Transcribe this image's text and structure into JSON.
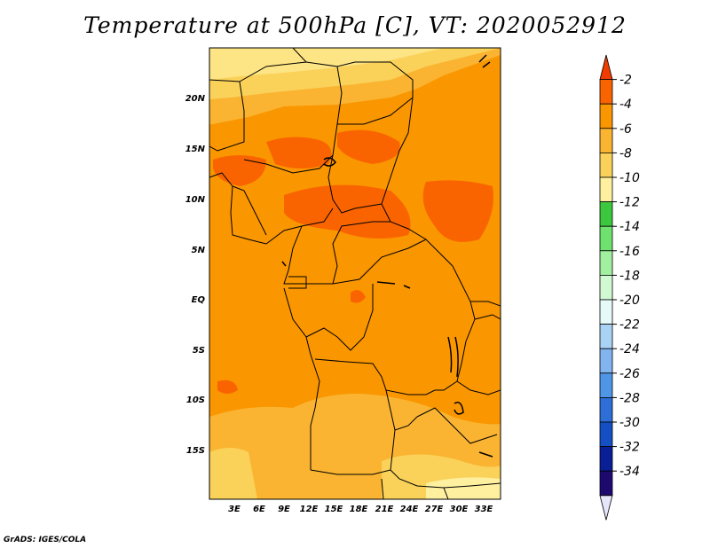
{
  "title": "Temperature at 500hPa [C], VT: 2020052912",
  "credit": "GrADS: IGES/COLA",
  "map": {
    "lat_labels": [
      "20N",
      "15N",
      "10N",
      "5N",
      "EQ",
      "5S",
      "10S",
      "15S"
    ],
    "lon_labels": [
      "3E",
      "6E",
      "9E",
      "12E",
      "15E",
      "18E",
      "21E",
      "24E",
      "27E",
      "30E",
      "33E"
    ]
  },
  "colorbar": {
    "labels": [
      "-2",
      "-4",
      "-6",
      "-8",
      "-10",
      "-12",
      "-14",
      "-16",
      "-18",
      "-20",
      "-22",
      "-24",
      "-26",
      "-28",
      "-30",
      "-32",
      "-34"
    ],
    "colors": [
      "#f03c00",
      "#fa6400",
      "#fa9600",
      "#fab432",
      "#fad25a",
      "#fff0a0",
      "#3cc83c",
      "#6ee16e",
      "#a0f0a0",
      "#d2fad2",
      "#e6fafa",
      "#aad2f5",
      "#82b4f0",
      "#5096e6",
      "#2d6ed7",
      "#1450c3",
      "#0a1e96",
      "#1e0a6e",
      "#e6e6fa"
    ]
  }
}
